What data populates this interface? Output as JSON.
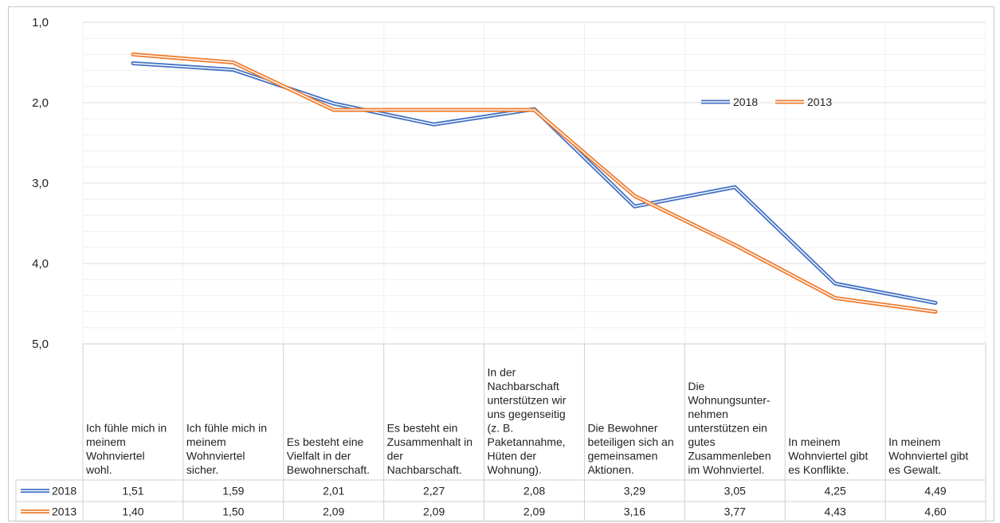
{
  "chart_data": {
    "type": "line",
    "y_reversed": true,
    "ylim": [
      1.0,
      5.0
    ],
    "yticks": [
      "1,0",
      "2,0",
      "3,0",
      "4,0",
      "5,0"
    ],
    "grid": true,
    "legend_position": "top-right",
    "categories": [
      [
        "Ich fühle mich in",
        "meinem",
        "Wohnviertel",
        "wohl."
      ],
      [
        "Ich fühle mich in",
        "meinem",
        "Wohnviertel",
        "sicher."
      ],
      [
        "Es besteht eine",
        "Vielfalt in der",
        "Bewohnerschaft."
      ],
      [
        "Es besteht ein",
        "Zusammenhalt in",
        "der",
        "Nachbarschaft."
      ],
      [
        "In der",
        "Nachbarschaft",
        "unterstützen wir",
        "uns gegenseitig",
        "(z. B.",
        "Paketannahme,",
        "Hüten der",
        "Wohnung)."
      ],
      [
        "Die Bewohner",
        "beteiligen sich an",
        "gemeinsamen",
        "Aktionen."
      ],
      [
        "Die",
        "Wohnungsunter-",
        "nehmen",
        "unterstützen ein",
        "gutes",
        "Zusammenleben",
        "im Wohnviertel."
      ],
      [
        "In meinem",
        "Wohnviertel gibt",
        "es Konflikte."
      ],
      [
        "In meinem",
        "Wohnviertel gibt",
        "es Gewalt."
      ]
    ],
    "series": [
      {
        "name": "2018",
        "color": "#4472c4",
        "values": [
          1.51,
          1.59,
          2.01,
          2.27,
          2.08,
          3.29,
          3.05,
          4.25,
          4.49
        ],
        "labels": [
          "1,51",
          "1,59",
          "2,01",
          "2,27",
          "2,08",
          "3,29",
          "3,05",
          "4,25",
          "4,49"
        ]
      },
      {
        "name": "2013",
        "color": "#ed7d31",
        "values": [
          1.4,
          1.5,
          2.09,
          2.09,
          2.09,
          3.16,
          3.77,
          4.43,
          4.6
        ],
        "labels": [
          "1,40",
          "1,50",
          "2,09",
          "2,09",
          "2,09",
          "3,16",
          "3,77",
          "4,43",
          "4,60"
        ]
      }
    ]
  }
}
